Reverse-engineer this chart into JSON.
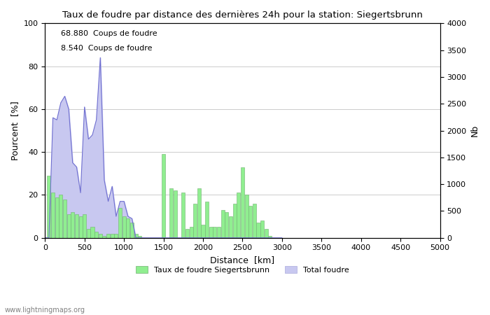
{
  "title": "Taux de foudre par distance des dernières 24h pour la station: Siegertsbrunn",
  "xlabel": "Distance  [km]",
  "ylabel_left": "Pourcent  [%]",
  "ylabel_right": "Nb",
  "annotation_line1": "68.880  Coups de foudre",
  "annotation_line2": "8.540  Coups de foudre",
  "xlim": [
    0,
    5000
  ],
  "ylim_left": [
    0,
    100
  ],
  "ylim_right": [
    0,
    4000
  ],
  "xticks": [
    0,
    500,
    1000,
    1500,
    2000,
    2500,
    3000,
    3500,
    4000,
    4500,
    5000
  ],
  "yticks_left": [
    0,
    20,
    40,
    60,
    80,
    100
  ],
  "yticks_right": [
    0,
    500,
    1000,
    1500,
    2000,
    2500,
    3000,
    3500,
    4000
  ],
  "legend_entries": [
    "Taux de foudre Siegertsbrunn",
    "Total foudre"
  ],
  "legend_colors": [
    "#90ee90",
    "#c8c8f0"
  ],
  "watermark": "www.lightningmaps.org",
  "background_color": "#ffffff",
  "grid_color": "#cccccc",
  "bar_color": "#90ee90",
  "fill_color": "#c8c8f0",
  "line_color": "#7070d0",
  "bar_edge_color": "#70b070",
  "green_bars": {
    "distances": [
      50,
      100,
      150,
      200,
      250,
      300,
      350,
      400,
      450,
      500,
      550,
      600,
      650,
      700,
      750,
      800,
      850,
      900,
      950,
      1000,
      1050,
      1100,
      1150,
      1200,
      1250,
      1300,
      1350,
      1400,
      1450,
      1500,
      1550,
      1600,
      1650,
      1700,
      1750,
      1800,
      1850,
      1900,
      1950,
      2000,
      2050,
      2100,
      2150,
      2200,
      2250,
      2300,
      2350,
      2400,
      2450,
      2500,
      2550,
      2600,
      2650,
      2700,
      2750,
      2800,
      2850,
      2900,
      2950,
      3000
    ],
    "values": [
      29,
      21,
      19,
      20,
      18,
      11,
      12,
      11,
      10,
      11,
      4,
      5,
      3,
      2,
      1,
      2,
      2,
      2,
      14,
      10,
      9,
      7,
      2,
      1,
      0,
      0,
      0,
      0,
      0,
      39,
      0,
      23,
      22,
      0,
      21,
      4,
      5,
      16,
      23,
      6,
      17,
      5,
      5,
      5,
      13,
      12,
      10,
      16,
      21,
      33,
      20,
      15,
      16,
      7,
      8,
      4,
      1,
      0,
      0,
      0
    ]
  },
  "blue_fill": {
    "distances": [
      0,
      50,
      100,
      150,
      200,
      250,
      300,
      350,
      400,
      450,
      500,
      550,
      600,
      650,
      700,
      750,
      800,
      850,
      900,
      950,
      1000,
      1050,
      1100,
      1150,
      1200
    ],
    "values": [
      0,
      0,
      56,
      55,
      63,
      66,
      60,
      35,
      33,
      21,
      61,
      46,
      48,
      55,
      84,
      27,
      17,
      24,
      10,
      17,
      17,
      10,
      9,
      0,
      0
    ]
  },
  "blue_line": {
    "distances": [
      0,
      50,
      100,
      150,
      200,
      250,
      300,
      350,
      400,
      450,
      500,
      550,
      600,
      650,
      700,
      750,
      800,
      850,
      900,
      950,
      1000,
      1050,
      1100,
      1150,
      1200,
      1250,
      1300,
      1350,
      1400,
      1450,
      1500,
      1550,
      1600,
      1650,
      1700,
      1750,
      1800,
      1850,
      1900,
      1950,
      2000,
      2050,
      2100,
      2150,
      2200,
      2250,
      2300,
      2350,
      2400,
      2450,
      2500,
      2550,
      2600,
      2650,
      2700,
      2750,
      2800,
      2850,
      2900,
      2950,
      3000
    ],
    "values": [
      0,
      0,
      56,
      55,
      63,
      66,
      60,
      35,
      33,
      21,
      61,
      46,
      48,
      55,
      84,
      27,
      17,
      24,
      10,
      17,
      17,
      10,
      9,
      0,
      0,
      0,
      0,
      0,
      0,
      0,
      0,
      0,
      0,
      0,
      0,
      0,
      0,
      0,
      0,
      0,
      0,
      0,
      0,
      0,
      0,
      0,
      0,
      0,
      0,
      0,
      0,
      0,
      0,
      0,
      0,
      0,
      0,
      0,
      0,
      0,
      0
    ]
  }
}
